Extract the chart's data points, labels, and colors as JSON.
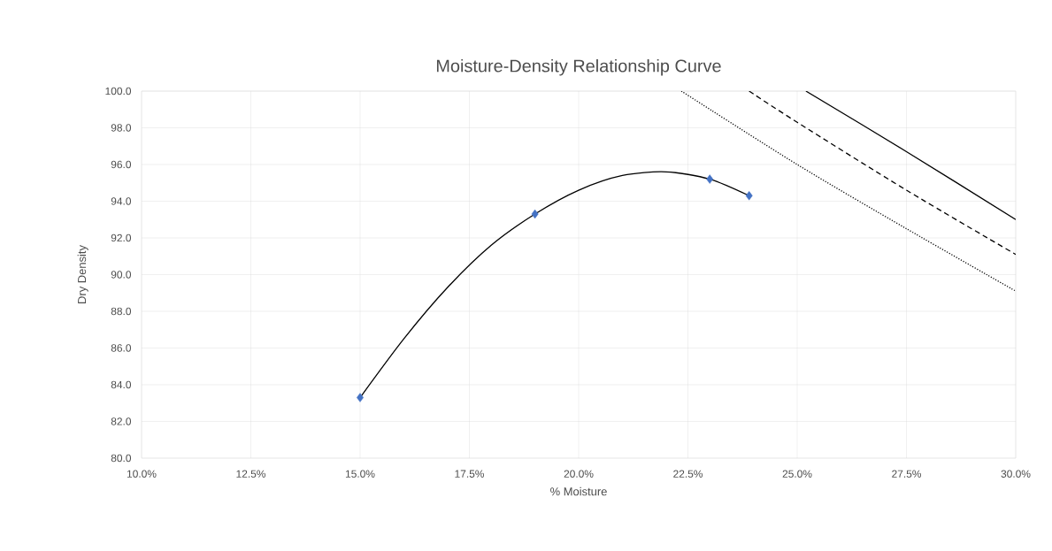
{
  "chart_data": {
    "type": "scatter",
    "title": "Moisture-Density Relationship Curve",
    "xlabel": "% Moisture",
    "ylabel": "Dry Density",
    "xlim": [
      10,
      30
    ],
    "ylim": [
      80,
      100
    ],
    "xticks": [
      {
        "value": 10,
        "label": "10.0%"
      },
      {
        "value": 12.5,
        "label": "12.5%"
      },
      {
        "value": 15,
        "label": "15.0%"
      },
      {
        "value": 17.5,
        "label": "17.5%"
      },
      {
        "value": 20,
        "label": "20.0%"
      },
      {
        "value": 22.5,
        "label": "22.5%"
      },
      {
        "value": 25,
        "label": "25.0%"
      },
      {
        "value": 27.5,
        "label": "27.5%"
      },
      {
        "value": 30,
        "label": "30.0%"
      }
    ],
    "yticks": [
      {
        "value": 80,
        "label": "80.0"
      },
      {
        "value": 82,
        "label": "82.0"
      },
      {
        "value": 84,
        "label": "84.0"
      },
      {
        "value": 86,
        "label": "86.0"
      },
      {
        "value": 88,
        "label": "88.0"
      },
      {
        "value": 90,
        "label": "90.0"
      },
      {
        "value": 92,
        "label": "92.0"
      },
      {
        "value": 94,
        "label": "94.0"
      },
      {
        "value": 96,
        "label": "96.0"
      },
      {
        "value": 98,
        "label": "98.0"
      },
      {
        "value": 100,
        "label": "100.0"
      }
    ],
    "grid": true,
    "series": [
      {
        "type": "line",
        "color": "#000000",
        "marker": "none",
        "line_style": "solid",
        "x": [
          15,
          16,
          17,
          18,
          19,
          20,
          21,
          22,
          23,
          23.9
        ],
        "values": [
          83.3,
          86.5,
          89.3,
          91.6,
          93.3,
          94.6,
          95.4,
          95.6,
          95.2,
          94.3
        ]
      },
      {
        "color": "#4472c4",
        "marker": "diamond",
        "x": [
          15,
          19,
          23,
          23.9
        ],
        "values": [
          83.3,
          93.3,
          95.2,
          94.3
        ]
      },
      {
        "type": "line",
        "color": "#000000",
        "marker": "none",
        "line_style": "solid",
        "x": [
          25.2,
          27.5,
          30
        ],
        "values": [
          100,
          96.7,
          93
        ]
      },
      {
        "type": "line",
        "color": "#000000",
        "marker": "none",
        "line_style": "dashed",
        "x": [
          23.9,
          25,
          27.5,
          30
        ],
        "values": [
          100,
          98.3,
          94.6,
          91.1
        ]
      },
      {
        "type": "line",
        "color": "#000000",
        "marker": "none",
        "line_style": "dotted",
        "x": [
          22.35,
          25,
          27.5,
          30
        ],
        "values": [
          100,
          96,
          92.5,
          89.1
        ]
      }
    ]
  }
}
